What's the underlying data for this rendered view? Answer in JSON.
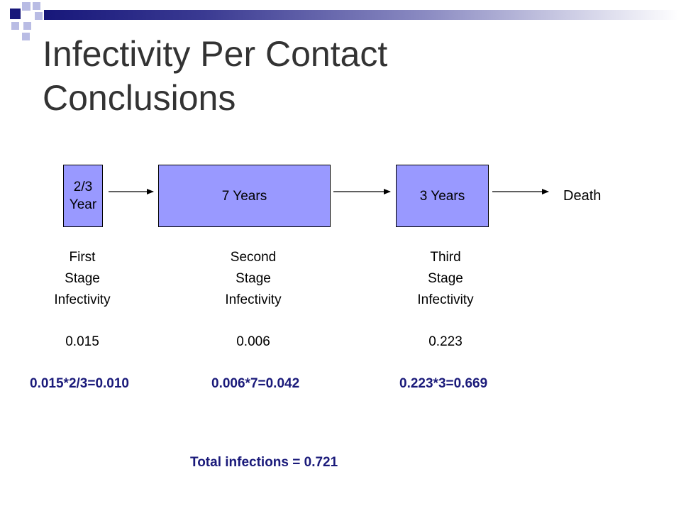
{
  "title": {
    "line1": "Infectivity Per Contact",
    "line2": "Conclusions"
  },
  "stages": [
    {
      "box_lines": [
        "2/3",
        "Year"
      ],
      "label_lines": [
        "First",
        "Stage",
        "Infectivity"
      ],
      "value": "0.015",
      "calc": "0.015*2/3=0.010"
    },
    {
      "box_label": "7 Years",
      "label_lines": [
        "Second",
        "Stage",
        "Infectivity"
      ],
      "value": "0.006",
      "calc": "0.006*7=0.042"
    },
    {
      "box_label": "3 Years",
      "label_lines": [
        "Third",
        "Stage",
        "Infectivity"
      ],
      "value": "0.223",
      "calc": "0.223*3=0.669"
    }
  ],
  "end_label": "Death",
  "total": "Total infections = 0.721",
  "colors": {
    "box_fill": "#9999ff",
    "calc_text": "#1a1a7a",
    "title_text": "#333333",
    "header_accent": "#17177a"
  }
}
